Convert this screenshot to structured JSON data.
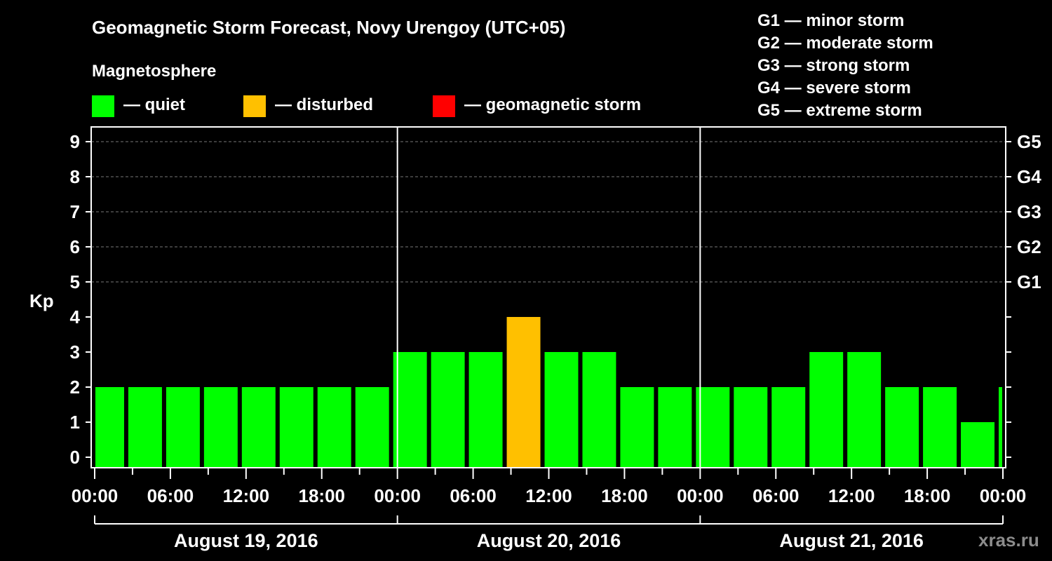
{
  "title": "Geomagnetic Storm Forecast, Novy Urengoy (UTC+05)",
  "legend": {
    "heading": "Magnetosphere",
    "items": [
      {
        "label": "— quiet",
        "color": "#00ff00"
      },
      {
        "label": "— disturbed",
        "color": "#ffc000"
      },
      {
        "label": "— geomagnetic storm",
        "color": "#ff0000"
      }
    ]
  },
  "storm_scale": [
    "G1 — minor storm",
    "G2 — moderate storm",
    "G3 — strong storm",
    "G4 — severe storm",
    "G5 — extreme storm"
  ],
  "watermark": "xras.ru",
  "chart_data": {
    "type": "bar",
    "ylabel": "Kp",
    "ylim": [
      0,
      9
    ],
    "yticks": [
      "0",
      "1",
      "2",
      "3",
      "4",
      "5",
      "6",
      "7",
      "8",
      "9"
    ],
    "right_ticks": [
      {
        "kp": 5,
        "label": "G1"
      },
      {
        "kp": 6,
        "label": "G2"
      },
      {
        "kp": 7,
        "label": "G3"
      },
      {
        "kp": 8,
        "label": "G4"
      },
      {
        "kp": 9,
        "label": "G5"
      }
    ],
    "grid": "dashed horizontal at Kp 5–9",
    "xticks": [
      "00:00",
      "06:00",
      "12:00",
      "18:00",
      "00:00",
      "06:00",
      "12:00",
      "18:00",
      "00:00",
      "06:00",
      "12:00",
      "18:00",
      "00:00"
    ],
    "days": [
      "August 19, 2016",
      "August 20, 2016",
      "August 21, 2016"
    ],
    "interval_hours": 3,
    "start_offset_hours": 1,
    "values": [
      2,
      2,
      2,
      2,
      2,
      2,
      2,
      2,
      3,
      3,
      3,
      4,
      3,
      3,
      2,
      2,
      2,
      2,
      2,
      3,
      3,
      2,
      2,
      1,
      2
    ],
    "color_rule": {
      "quiet_max": 3,
      "disturbed_max": 4,
      "quiet": "#00ff00",
      "disturbed": "#ffc000",
      "storm": "#ff0000"
    }
  }
}
